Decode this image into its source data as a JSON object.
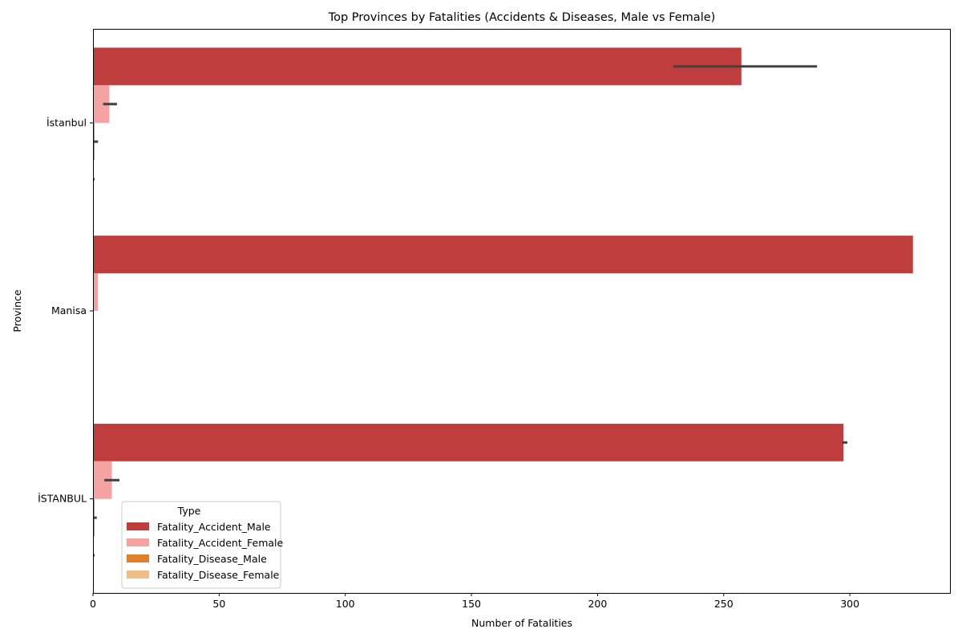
{
  "chart_data": {
    "type": "bar",
    "orientation": "horizontal",
    "title": "Top Provinces by Fatalities (Accidents & Diseases, Male vs Female)",
    "xlabel": "Number of Fatalities",
    "ylabel": "Province",
    "xlim": [
      0,
      340
    ],
    "xticks": [
      0,
      50,
      100,
      150,
      200,
      250,
      300
    ],
    "grid": false,
    "legend": {
      "title": "Type",
      "placement": "lower-left"
    },
    "categories": [
      "İstanbul",
      "Manisa",
      "İSTANBUL"
    ],
    "series": [
      {
        "name": "Fatality_Accident_Male",
        "color": "#c03d3e",
        "values": [
          257,
          325,
          297.5
        ],
        "ci": [
          [
            230,
            287
          ],
          null,
          [
            297,
            299
          ]
        ]
      },
      {
        "name": "Fatality_Accident_Female",
        "color": "#f5a3a2",
        "values": [
          6.5,
          2,
          7.5
        ],
        "ci": [
          [
            4,
            9.5
          ],
          null,
          [
            4.5,
            10.5
          ]
        ]
      },
      {
        "name": "Fatality_Disease_Male",
        "color": "#e1802b",
        "values": [
          0.6,
          0,
          0.6
        ],
        "ci": [
          [
            0,
            2
          ],
          null,
          [
            0,
            1.5
          ]
        ]
      },
      {
        "name": "Fatality_Disease_Female",
        "color": "#f0bd85",
        "values": [
          0.2,
          0,
          0.2
        ],
        "ci": [
          [
            0,
            0.6
          ],
          null,
          [
            0,
            0.5
          ]
        ]
      }
    ]
  }
}
